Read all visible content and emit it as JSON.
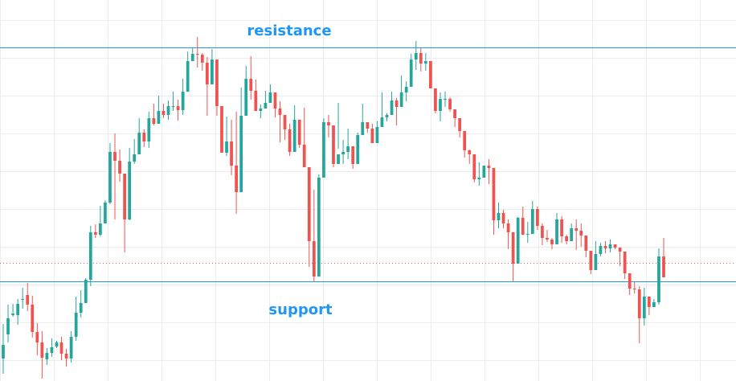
{
  "chart_data": {
    "type": "candlestick",
    "title": "",
    "xlabel": "",
    "ylabel": "",
    "ylim": [
      0,
      474
    ],
    "grid": true,
    "colors": {
      "up": "#26a69a",
      "down": "#ef5350",
      "level_line": "#2196f3",
      "label": "#2196f3",
      "grid": "#ececec",
      "price_line": "#ef5350"
    },
    "levels": [
      {
        "label": "resistance",
        "value": 415
      },
      {
        "label": "support",
        "value": 124
      }
    ],
    "current_price": 147,
    "candles": [
      [
        28,
        45,
        71,
        9
      ],
      [
        58,
        78,
        95,
        48
      ],
      [
        82,
        84,
        96,
        80
      ],
      [
        82,
        96,
        102,
        70
      ],
      [
        101,
        102,
        116,
        90
      ],
      [
        107,
        95,
        122,
        87
      ],
      [
        95,
        61,
        106,
        54
      ],
      [
        61,
        48,
        72,
        32
      ],
      [
        48,
        29,
        62,
        3
      ],
      [
        27,
        35,
        41,
        20
      ],
      [
        35,
        42,
        53,
        30
      ],
      [
        43,
        48,
        50,
        41
      ],
      [
        48,
        34,
        55,
        26
      ],
      [
        34,
        28,
        40,
        18
      ],
      [
        28,
        55,
        62,
        23
      ],
      [
        55,
        85,
        105,
        50
      ],
      [
        85,
        97,
        113,
        79
      ],
      [
        97,
        126,
        128,
        122
      ],
      [
        126,
        185,
        193,
        118
      ],
      [
        185,
        182,
        195,
        178
      ],
      [
        182,
        196,
        218,
        180
      ],
      [
        196,
        222,
        225,
        196
      ],
      [
        222,
        285,
        296,
        220
      ],
      [
        285,
        274,
        308,
        201
      ],
      [
        274,
        258,
        288,
        248
      ],
      [
        258,
        201,
        252,
        160
      ],
      [
        201,
        273,
        290,
        200
      ],
      [
        273,
        282,
        301,
        270
      ],
      [
        282,
        309,
        327,
        292
      ],
      [
        309,
        298,
        313,
        291
      ],
      [
        298,
        327,
        335,
        290
      ],
      [
        327,
        320,
        345,
        318
      ],
      [
        320,
        336,
        355,
        321
      ],
      [
        336,
        331,
        345,
        327
      ],
      [
        331,
        342,
        349,
        325
      ],
      [
        342,
        342,
        360,
        336
      ],
      [
        342,
        337,
        350,
        324
      ],
      [
        337,
        360,
        376,
        331
      ],
      [
        360,
        398,
        410,
        371
      ],
      [
        398,
        407,
        414,
        400
      ],
      [
        407,
        406,
        428,
        390
      ],
      [
        406,
        396,
        408,
        386
      ],
      [
        396,
        369,
        403,
        330
      ],
      [
        369,
        400,
        413,
        370
      ],
      [
        400,
        342,
        353,
        330
      ],
      [
        342,
        284,
        337,
        290
      ],
      [
        284,
        298,
        329,
        280
      ],
      [
        298,
        268,
        325,
        256
      ],
      [
        268,
        235,
        335,
        208
      ],
      [
        235,
        330,
        365,
        310
      ],
      [
        330,
        376,
        392,
        338
      ],
      [
        376,
        361,
        404,
        350
      ],
      [
        361,
        336,
        375,
        340
      ],
      [
        336,
        339,
        344,
        327
      ],
      [
        339,
        346,
        361,
        340
      ],
      [
        346,
        359,
        369,
        352
      ],
      [
        359,
        339,
        344,
        328
      ],
      [
        339,
        331,
        348,
        297
      ],
      [
        331,
        313,
        319,
        300
      ],
      [
        313,
        285,
        320,
        280
      ],
      [
        285,
        325,
        343,
        312
      ],
      [
        325,
        294,
        315,
        290
      ],
      [
        294,
        266,
        340,
        279
      ],
      [
        266,
        174,
        247,
        142
      ],
      [
        174,
        130,
        238,
        124
      ],
      [
        130,
        253,
        257,
        222
      ],
      [
        253,
        322,
        327,
        286
      ],
      [
        322,
        318,
        331,
        303
      ],
      [
        318,
        270,
        284,
        266
      ],
      [
        270,
        282,
        346,
        289
      ],
      [
        282,
        285,
        300,
        270
      ],
      [
        285,
        292,
        314,
        276
      ],
      [
        292,
        270,
        285,
        264
      ],
      [
        270,
        306,
        309,
        288
      ],
      [
        306,
        322,
        345,
        311
      ],
      [
        322,
        314,
        317,
        309
      ],
      [
        314,
        296,
        320,
        300
      ],
      [
        296,
        316,
        323,
        300
      ],
      [
        316,
        328,
        359,
        319
      ],
      [
        328,
        331,
        333,
        323
      ],
      [
        331,
        349,
        360,
        348
      ],
      [
        349,
        341,
        352,
        318
      ],
      [
        341,
        359,
        380,
        352
      ],
      [
        359,
        366,
        373,
        348
      ],
      [
        366,
        400,
        407,
        381
      ],
      [
        400,
        408,
        423,
        387
      ],
      [
        408,
        395,
        414,
        385
      ],
      [
        395,
        398,
        408,
        386
      ],
      [
        398,
        364,
        398,
        375
      ],
      [
        364,
        336,
        361,
        333
      ],
      [
        336,
        351,
        359,
        323
      ],
      [
        351,
        351,
        360,
        341
      ],
      [
        351,
        338,
        353,
        335
      ],
      [
        338,
        327,
        329,
        316
      ],
      [
        327,
        311,
        324,
        303
      ],
      [
        311,
        287,
        306,
        278
      ],
      [
        287,
        282,
        288,
        270
      ],
      [
        282,
        251,
        280,
        247
      ],
      [
        251,
        253,
        272,
        243
      ],
      [
        253,
        268,
        268,
        258
      ],
      [
        268,
        265,
        276,
        245
      ],
      [
        265,
        200,
        249,
        182
      ],
      [
        200,
        209,
        222,
        190
      ],
      [
        209,
        196,
        213,
        190
      ],
      [
        196,
        185,
        201,
        164
      ],
      [
        185,
        146,
        183,
        124
      ],
      [
        146,
        203,
        204,
        177
      ],
      [
        203,
        182,
        217,
        190
      ],
      [
        182,
        183,
        198,
        172
      ],
      [
        183,
        214,
        224,
        195
      ],
      [
        214,
        193,
        217,
        188
      ],
      [
        193,
        178,
        196,
        169
      ],
      [
        178,
        176,
        188,
        173
      ],
      [
        176,
        170,
        178,
        164
      ],
      [
        170,
        201,
        209,
        183
      ],
      [
        201,
        180,
        205,
        172
      ],
      [
        180,
        174,
        182,
        170
      ],
      [
        174,
        190,
        196,
        180
      ],
      [
        190,
        187,
        201,
        163
      ],
      [
        187,
        181,
        196,
        167
      ],
      [
        181,
        162,
        171,
        154
      ],
      [
        162,
        138,
        152,
        133
      ],
      [
        138,
        158,
        174,
        150
      ],
      [
        158,
        168,
        172,
        155
      ],
      [
        168,
        165,
        174,
        159
      ],
      [
        165,
        170,
        176,
        160
      ],
      [
        170,
        166,
        169,
        164
      ],
      [
        166,
        161,
        161,
        143
      ],
      [
        161,
        134,
        143,
        127
      ],
      [
        134,
        115,
        132,
        107
      ],
      [
        115,
        114,
        123,
        109
      ],
      [
        114,
        78,
        118,
        47
      ],
      [
        78,
        105,
        116,
        69
      ],
      [
        105,
        92,
        98,
        82
      ],
      [
        92,
        98,
        102,
        92
      ],
      [
        98,
        155,
        165,
        95
      ],
      [
        155,
        129,
        178,
        138
      ]
    ],
    "labels": [
      {
        "text": "resistance",
        "x": 360,
        "y": 39
      },
      {
        "text": "support",
        "x": 374,
        "y": 386
      }
    ]
  }
}
